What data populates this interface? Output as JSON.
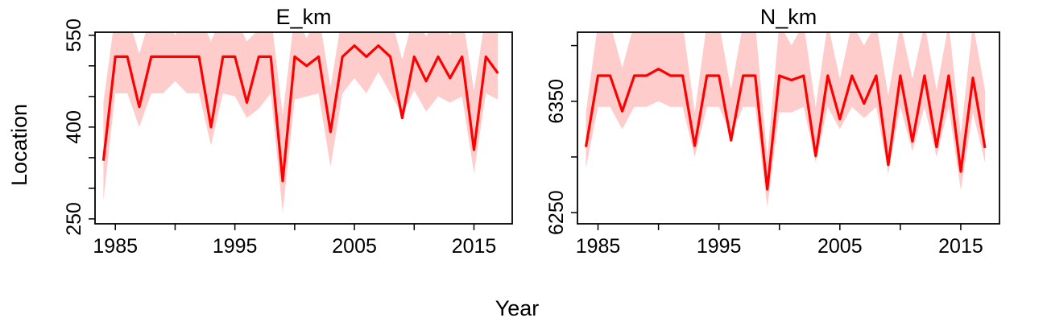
{
  "figure": {
    "xlabel": "Year",
    "ylabel": "Location"
  },
  "colors": {
    "line": "#ff0000",
    "band": "#ffcccc"
  },
  "chart_data": [
    {
      "type": "line",
      "title": "E_km",
      "xlabel": "Year",
      "ylabel": "Location",
      "xlim": [
        1983.3,
        2018.2
      ],
      "ylim": [
        242,
        555
      ],
      "xticks": [
        1985,
        1990,
        1995,
        2000,
        2005,
        2010,
        2015
      ],
      "xtick_labels": [
        "1985",
        "",
        "1995",
        "",
        "2005",
        "",
        "2015"
      ],
      "yticks": [
        250,
        300,
        350,
        400,
        450,
        500,
        550
      ],
      "ytick_labels": [
        "250",
        "",
        "",
        "400",
        "",
        "",
        "550"
      ],
      "grid": false,
      "x": [
        1984,
        1985,
        1986,
        1987,
        1988,
        1989,
        1990,
        1991,
        1992,
        1993,
        1994,
        1995,
        1996,
        1997,
        1998,
        1999,
        2000,
        2001,
        2002,
        2003,
        2004,
        2005,
        2006,
        2007,
        2008,
        2009,
        2010,
        2011,
        2012,
        2013,
        2014,
        2015,
        2016,
        2017
      ],
      "series": [
        {
          "values": [
            345,
            515,
            515,
            433,
            515,
            515,
            515,
            515,
            515,
            400,
            515,
            515,
            440,
            515,
            515,
            312,
            515,
            500,
            515,
            392,
            515,
            533,
            515,
            533,
            515,
            415,
            515,
            475,
            515,
            480,
            515,
            363,
            515,
            488
          ],
          "lower": [
            280,
            455,
            455,
            400,
            455,
            455,
            475,
            455,
            455,
            370,
            455,
            450,
            415,
            430,
            455,
            260,
            445,
            450,
            455,
            335,
            455,
            480,
            455,
            490,
            455,
            420,
            460,
            425,
            450,
            440,
            450,
            325,
            455,
            445
          ],
          "upper": [
            440,
            585,
            585,
            520,
            585,
            585,
            550,
            585,
            585,
            540,
            585,
            580,
            540,
            560,
            585,
            420,
            585,
            545,
            585,
            465,
            585,
            588,
            583,
            580,
            583,
            510,
            585,
            548,
            585,
            550,
            585,
            460,
            585,
            575
          ]
        }
      ]
    },
    {
      "type": "line",
      "title": "N_km",
      "xlabel": "Year",
      "ylabel": "Location",
      "xlim": [
        1983.3,
        2018.2
      ],
      "ylim": [
        6240,
        6412
      ],
      "xticks": [
        1985,
        1990,
        1995,
        2000,
        2005,
        2010,
        2015
      ],
      "xtick_labels": [
        "1985",
        "",
        "1995",
        "",
        "2005",
        "",
        "2015"
      ],
      "yticks": [
        6250,
        6300,
        6350,
        6400
      ],
      "ytick_labels": [
        "6250",
        "",
        "6350",
        ""
      ],
      "grid": false,
      "x": [
        1984,
        1985,
        1986,
        1987,
        1988,
        1989,
        1990,
        1991,
        1992,
        1993,
        1994,
        1995,
        1996,
        1997,
        1998,
        1999,
        2000,
        2001,
        2002,
        2003,
        2004,
        2005,
        2006,
        2007,
        2008,
        2009,
        2010,
        2011,
        2012,
        2013,
        2014,
        2015,
        2016,
        2017
      ],
      "series": [
        {
          "values": [
            6309,
            6373,
            6373,
            6341,
            6373,
            6373,
            6379,
            6373,
            6373,
            6310,
            6373,
            6373,
            6315,
            6373,
            6373,
            6271,
            6373,
            6369,
            6373,
            6301,
            6373,
            6334,
            6373,
            6348,
            6373,
            6293,
            6373,
            6314,
            6373,
            6309,
            6373,
            6287,
            6371,
            6308
          ],
          "lower": [
            6290,
            6345,
            6345,
            6325,
            6345,
            6345,
            6350,
            6345,
            6345,
            6300,
            6345,
            6345,
            6320,
            6345,
            6345,
            6255,
            6340,
            6340,
            6345,
            6295,
            6345,
            6325,
            6345,
            6335,
            6345,
            6285,
            6345,
            6305,
            6345,
            6300,
            6345,
            6270,
            6340,
            6295
          ],
          "upper": [
            6340,
            6420,
            6420,
            6380,
            6420,
            6420,
            6415,
            6420,
            6420,
            6340,
            6420,
            6420,
            6360,
            6420,
            6420,
            6300,
            6420,
            6400,
            6420,
            6345,
            6420,
            6370,
            6420,
            6400,
            6420,
            6355,
            6420,
            6370,
            6420,
            6360,
            6420,
            6320,
            6420,
            6360
          ]
        }
      ]
    }
  ]
}
